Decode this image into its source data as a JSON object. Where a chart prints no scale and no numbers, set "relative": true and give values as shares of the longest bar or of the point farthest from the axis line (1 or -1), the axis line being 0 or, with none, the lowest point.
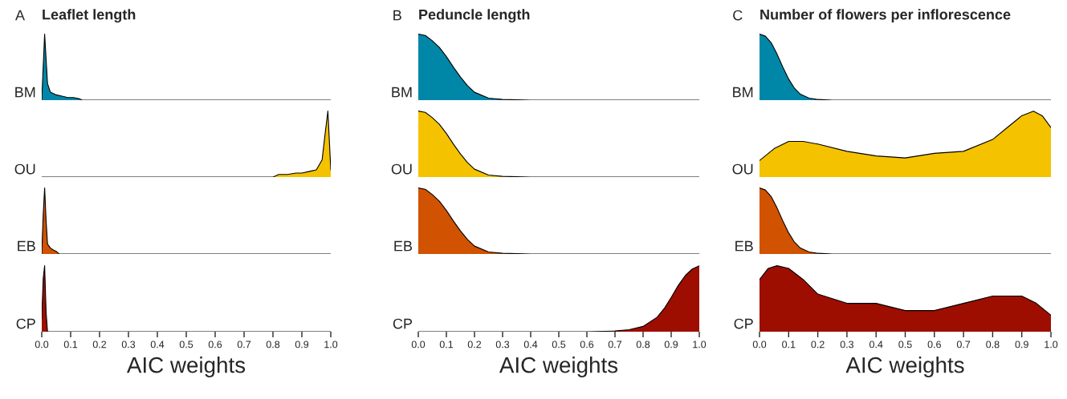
{
  "chart_data": [
    {
      "type": "area",
      "relative": true,
      "title": "Leaflet length",
      "annotations": [
        "A"
      ],
      "grid": false,
      "xlim": [
        0,
        1
      ],
      "tick_labels": false,
      "series": [
        {
          "name": "BM",
          "color": "#0087a8",
          "x": [
            0,
            0.01,
            0.02,
            0.03,
            0.05,
            0.07,
            0.09,
            0.11,
            0.13,
            0.14,
            1.0
          ],
          "values": [
            0,
            1,
            0.25,
            0.12,
            0.08,
            0.06,
            0.04,
            0.04,
            0.02,
            0,
            0
          ]
        }
      ]
    },
    {
      "type": "area",
      "relative": true,
      "grid": false,
      "xlim": [
        0,
        1
      ],
      "tick_labels": false,
      "series": [
        {
          "name": "OU",
          "color": "#f5c200",
          "x": [
            0,
            0.8,
            0.82,
            0.85,
            0.88,
            0.9,
            0.93,
            0.95,
            0.97,
            0.98,
            0.99,
            1.0
          ],
          "values": [
            0,
            0,
            0.04,
            0.04,
            0.06,
            0.06,
            0.09,
            0.11,
            0.26,
            0.64,
            1,
            0.11
          ]
        }
      ]
    },
    {
      "type": "area",
      "relative": true,
      "grid": false,
      "xlim": [
        0,
        1
      ],
      "tick_labels": false,
      "series": [
        {
          "name": "EB",
          "color": "#d15200",
          "x": [
            0,
            0.005,
            0.01,
            0.015,
            0.02,
            0.03,
            0.04,
            0.05,
            0.06,
            1.0
          ],
          "values": [
            0,
            0.59,
            1,
            0.51,
            0.15,
            0.09,
            0.06,
            0.04,
            0,
            0
          ]
        }
      ]
    },
    {
      "type": "area",
      "relative": true,
      "xlabel": "AIC weights",
      "grid": false,
      "xlim": [
        0,
        1
      ],
      "xticks": [
        {
          "value": 0,
          "label": "0.0"
        },
        {
          "value": 0.1,
          "label": "0.1"
        },
        {
          "value": 0.2,
          "label": "0.2"
        },
        {
          "value": 0.3,
          "label": "0.3"
        },
        {
          "value": 0.4,
          "label": "0.4"
        },
        {
          "value": 0.5,
          "label": "0.5"
        },
        {
          "value": 0.6,
          "label": "0.6"
        },
        {
          "value": 0.7,
          "label": "0.7"
        },
        {
          "value": 0.8,
          "label": "0.8"
        },
        {
          "value": 0.9,
          "label": "0.9"
        },
        {
          "value": 1,
          "label": "1.0"
        }
      ],
      "tick_labels": "x",
      "series": [
        {
          "name": "CP",
          "color": "#9e0e00",
          "x": [
            0,
            0.005,
            0.01,
            0.015,
            0.02,
            1.0
          ],
          "values": [
            0.2,
            0.8,
            1.0,
            0.3,
            0,
            0
          ]
        }
      ]
    },
    {
      "type": "area",
      "relative": true,
      "title": "Peduncle length",
      "annotations": [
        "B"
      ],
      "grid": false,
      "xlim": [
        0,
        1
      ],
      "tick_labels": false,
      "series": [
        {
          "name": "BM",
          "color": "#0087a8",
          "x": [
            0,
            0.025,
            0.05,
            0.075,
            0.1,
            0.125,
            0.15,
            0.175,
            0.2,
            0.25,
            0.3,
            0.4,
            1.0
          ],
          "values": [
            1,
            0.98,
            0.9,
            0.8,
            0.66,
            0.5,
            0.35,
            0.22,
            0.12,
            0.03,
            0.01,
            0,
            0
          ]
        }
      ]
    },
    {
      "type": "area",
      "relative": true,
      "grid": false,
      "xlim": [
        0,
        1
      ],
      "tick_labels": false,
      "series": [
        {
          "name": "OU",
          "color": "#f5c200",
          "x": [
            0,
            0.025,
            0.05,
            0.075,
            0.1,
            0.125,
            0.15,
            0.175,
            0.2,
            0.25,
            0.3,
            0.4,
            1.0
          ],
          "values": [
            1,
            0.98,
            0.9,
            0.8,
            0.66,
            0.5,
            0.35,
            0.22,
            0.12,
            0.03,
            0.01,
            0,
            0
          ]
        }
      ]
    },
    {
      "type": "area",
      "relative": true,
      "grid": false,
      "xlim": [
        0,
        1
      ],
      "tick_labels": false,
      "series": [
        {
          "name": "EB",
          "color": "#d15200",
          "x": [
            0,
            0.025,
            0.05,
            0.075,
            0.1,
            0.125,
            0.15,
            0.175,
            0.2,
            0.25,
            0.3,
            0.4,
            1.0
          ],
          "values": [
            1,
            0.98,
            0.9,
            0.8,
            0.66,
            0.5,
            0.35,
            0.22,
            0.12,
            0.03,
            0.01,
            0,
            0
          ]
        }
      ]
    },
    {
      "type": "area",
      "relative": true,
      "xlabel": "AIC weights",
      "grid": false,
      "xlim": [
        0,
        1
      ],
      "xticks": [
        {
          "value": 0,
          "label": "0.0"
        },
        {
          "value": 0.1,
          "label": "0.1"
        },
        {
          "value": 0.2,
          "label": "0.2"
        },
        {
          "value": 0.3,
          "label": "0.3"
        },
        {
          "value": 0.4,
          "label": "0.4"
        },
        {
          "value": 0.5,
          "label": "0.5"
        },
        {
          "value": 0.6,
          "label": "0.6"
        },
        {
          "value": 0.7,
          "label": "0.7"
        },
        {
          "value": 0.8,
          "label": "0.8"
        },
        {
          "value": 0.9,
          "label": "0.9"
        },
        {
          "value": 1,
          "label": "1.0"
        }
      ],
      "tick_labels": "x",
      "series": [
        {
          "name": "CP",
          "color": "#9e0e00",
          "x": [
            0,
            0.6,
            0.7,
            0.75,
            0.8,
            0.85,
            0.875,
            0.9,
            0.925,
            0.95,
            0.975,
            1.0
          ],
          "values": [
            0,
            0,
            0.01,
            0.03,
            0.08,
            0.22,
            0.35,
            0.52,
            0.7,
            0.85,
            0.95,
            1.0
          ]
        }
      ]
    },
    {
      "type": "area",
      "relative": true,
      "title": "Number of flowers per inflorescence",
      "annotations": [
        "C"
      ],
      "grid": false,
      "xlim": [
        0,
        1
      ],
      "tick_labels": false,
      "series": [
        {
          "name": "BM",
          "color": "#0087a8",
          "x": [
            0,
            0.02,
            0.04,
            0.06,
            0.08,
            0.1,
            0.12,
            0.14,
            0.17,
            0.2,
            0.25,
            1.0
          ],
          "values": [
            1,
            0.97,
            0.87,
            0.7,
            0.5,
            0.32,
            0.18,
            0.09,
            0.03,
            0.01,
            0,
            0
          ]
        }
      ]
    },
    {
      "type": "area",
      "relative": true,
      "grid": false,
      "xlim": [
        0,
        1
      ],
      "tick_labels": false,
      "series": [
        {
          "name": "OU",
          "color": "#f5c200",
          "x": [
            0,
            0.05,
            0.1,
            0.15,
            0.2,
            0.3,
            0.4,
            0.5,
            0.6,
            0.7,
            0.8,
            0.85,
            0.9,
            0.94,
            0.97,
            1.0
          ],
          "values": [
            0.25,
            0.43,
            0.54,
            0.54,
            0.5,
            0.39,
            0.32,
            0.29,
            0.36,
            0.39,
            0.57,
            0.75,
            0.93,
            1,
            0.93,
            0.75
          ]
        }
      ]
    },
    {
      "type": "area",
      "relative": true,
      "grid": false,
      "xlim": [
        0,
        1
      ],
      "tick_labels": false,
      "series": [
        {
          "name": "EB",
          "color": "#d15200",
          "x": [
            0,
            0.02,
            0.04,
            0.06,
            0.08,
            0.1,
            0.12,
            0.14,
            0.17,
            0.2,
            0.25,
            1.0
          ],
          "values": [
            1,
            0.97,
            0.87,
            0.7,
            0.5,
            0.32,
            0.18,
            0.09,
            0.03,
            0.01,
            0,
            0
          ]
        }
      ]
    },
    {
      "type": "area",
      "relative": true,
      "xlabel": "AIC weights",
      "grid": false,
      "xlim": [
        0,
        1
      ],
      "xticks": [
        {
          "value": 0,
          "label": "0.0"
        },
        {
          "value": 0.1,
          "label": "0.1"
        },
        {
          "value": 0.2,
          "label": "0.2"
        },
        {
          "value": 0.3,
          "label": "0.3"
        },
        {
          "value": 0.4,
          "label": "0.4"
        },
        {
          "value": 0.5,
          "label": "0.5"
        },
        {
          "value": 0.6,
          "label": "0.6"
        },
        {
          "value": 0.7,
          "label": "0.7"
        },
        {
          "value": 0.8,
          "label": "0.8"
        },
        {
          "value": 0.9,
          "label": "0.9"
        },
        {
          "value": 1,
          "label": "1.0"
        }
      ],
      "tick_labels": "x",
      "series": [
        {
          "name": "CP",
          "color": "#9e0e00",
          "x": [
            0,
            0.03,
            0.06,
            0.1,
            0.15,
            0.2,
            0.3,
            0.4,
            0.5,
            0.6,
            0.7,
            0.8,
            0.85,
            0.9,
            0.95,
            1.0
          ],
          "values": [
            0.79,
            0.96,
            1,
            0.96,
            0.79,
            0.57,
            0.43,
            0.43,
            0.32,
            0.32,
            0.43,
            0.54,
            0.54,
            0.54,
            0.43,
            0.25
          ]
        }
      ]
    }
  ]
}
